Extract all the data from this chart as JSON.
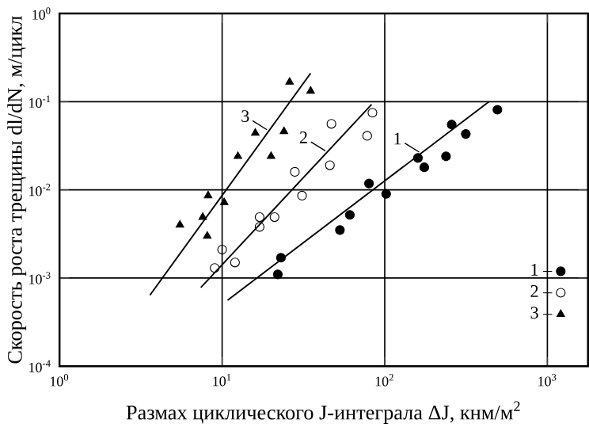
{
  "chart_data": {
    "type": "scatter",
    "xlabel": "Размах циклического J-интеграла ΔJ, кнм/м$^{2}$",
    "ylabel": "Скорость роста трещины dl/dN, м/цикл",
    "log": "xy",
    "grid": true,
    "legend": "bottom right",
    "xlim": [
      1,
      1778
    ],
    "ylim": [
      0.0001,
      1
    ],
    "xticks": [
      {
        "value": 1,
        "label": "10$^{0}$"
      },
      {
        "value": 10,
        "label": "10$^{1}$"
      },
      {
        "value": 100,
        "label": "10$^{2}$"
      },
      {
        "value": 1000,
        "label": "10$^{3}$"
      }
    ],
    "yticks": [
      {
        "value": 0.0001,
        "label": "10$^{-4}$"
      },
      {
        "value": 0.001,
        "label": "10$^{-3}$"
      },
      {
        "value": 0.01,
        "label": "10$^{-2}$"
      },
      {
        "value": 0.1,
        "label": "10$^{-1}$"
      },
      {
        "value": 1,
        "label": "10$^{0}$"
      }
    ],
    "series": [
      {
        "name": "1 –",
        "marker": "circle",
        "color": "#000000",
        "x": [
          493,
          258,
          315,
          160,
          238,
          175,
          80,
          102,
          61,
          53,
          23,
          22
        ],
        "values": [
          0.081,
          0.055,
          0.043,
          0.023,
          0.024,
          0.018,
          0.0118,
          0.009,
          0.0052,
          0.0035,
          0.0017,
          0.0011
        ]
      },
      {
        "name": "2 –",
        "marker": "circle-open",
        "color": "#000000",
        "x": [
          84,
          47,
          78,
          46,
          28,
          31,
          17,
          21,
          17,
          10,
          12,
          9
        ],
        "values": [
          0.075,
          0.056,
          0.041,
          0.019,
          0.016,
          0.0086,
          0.0049,
          0.0049,
          0.0038,
          0.0021,
          0.0015,
          0.0013
        ]
      },
      {
        "name": "3 –",
        "marker": "triangle",
        "color": "#000000",
        "x": [
          26,
          35,
          16,
          24,
          12.5,
          20,
          8.2,
          10.3,
          7.6,
          5.5,
          8.1
        ],
        "values": [
          0.167,
          0.132,
          0.044,
          0.046,
          0.024,
          0.024,
          0.0086,
          0.0072,
          0.0049,
          0.004,
          0.003
        ]
      },
      {
        "name": "1",
        "type": "line",
        "marker": "none",
        "color": "#000000",
        "x": [
          10.8,
          438
        ],
        "values": [
          0.00056,
          0.1
        ]
      },
      {
        "name": "2",
        "type": "line",
        "marker": "none",
        "color": "#000000",
        "x": [
          7.4,
          83
        ],
        "values": [
          0.00078,
          0.093
        ]
      },
      {
        "name": "3",
        "type": "line",
        "marker": "none",
        "color": "#000000",
        "x": [
          3.6,
          35
        ],
        "values": [
          0.00064,
          0.21
        ]
      }
    ]
  }
}
